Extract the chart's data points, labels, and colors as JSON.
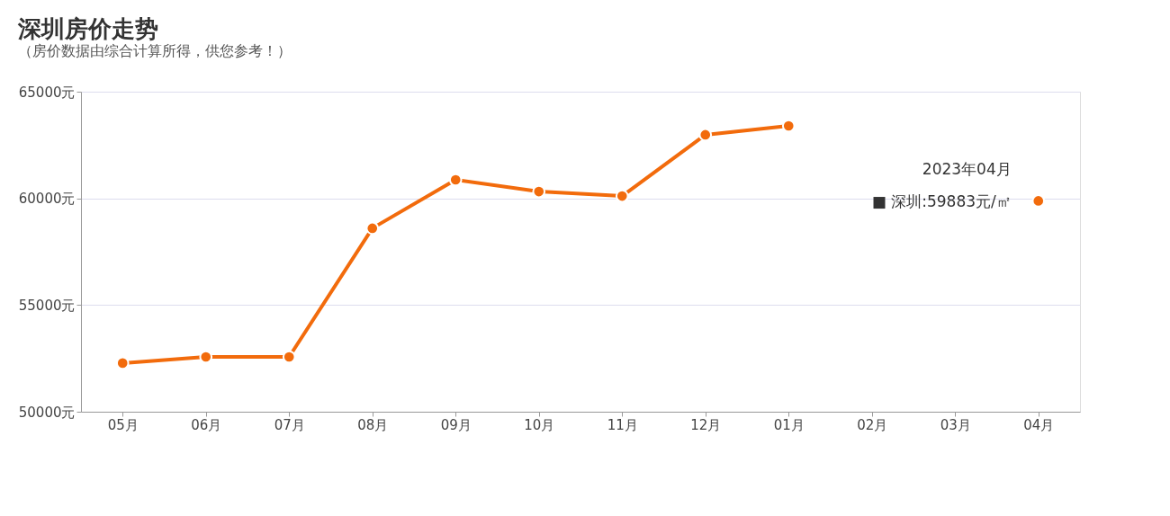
{
  "chart_data": {
    "type": "line",
    "title": "深圳房价走势",
    "subtitle": "（房价数据由综合计算所得，供您参考！）",
    "categories": [
      "05月",
      "06月",
      "07月",
      "08月",
      "09月",
      "10月",
      "11月",
      "12月",
      "01月",
      "02月",
      "03月",
      "04月"
    ],
    "series": [
      {
        "color": "#f26b0c",
        "values": [
          52280,
          52570,
          52570,
          58600,
          60870,
          60320,
          60110,
          62980,
          63400,
          null,
          null,
          59883
        ]
      }
    ],
    "ylim": [
      50000,
      65000
    ],
    "yticks": [
      {
        "value": 50000,
        "label": "50000元"
      },
      {
        "value": 55000,
        "label": "55000元"
      },
      {
        "value": 60000,
        "label": "60000元"
      },
      {
        "value": 65000,
        "label": "65000元"
      }
    ],
    "grid": "y",
    "marker": "circle",
    "line_style": "solid",
    "annotations": [
      {
        "text": "2023年04月",
        "x": "04月",
        "y": 59883
      },
      {
        "text": "■ 深圳:59883元/㎡",
        "x": "04月",
        "y": 59883
      }
    ]
  }
}
